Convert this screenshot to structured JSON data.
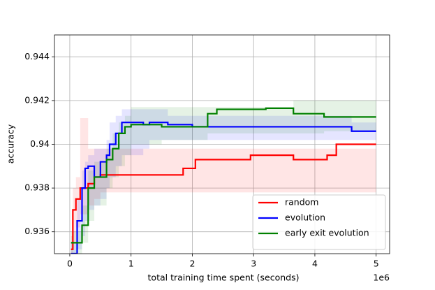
{
  "chart_data": {
    "type": "line",
    "drawstyle": "steps-post",
    "xlabel": "total training time spent (seconds)",
    "ylabel": "accuracy",
    "x_offset_label": "1e6",
    "xlim": [
      -0.25,
      5.22
    ],
    "xticks": [
      0,
      1,
      2,
      3,
      4,
      5
    ],
    "ylim": [
      0.935,
      0.945
    ],
    "yticks": [
      0.936,
      0.938,
      0.94,
      0.942,
      0.944
    ],
    "grid": true,
    "legend": "lower right",
    "series": [
      {
        "name": "random",
        "color": "#ff0000",
        "x": [
          0.02,
          0.05,
          0.1,
          0.17,
          0.3,
          0.4,
          0.5,
          1.85,
          2.05,
          2.95,
          3.65,
          4.2,
          4.35,
          5.0
        ],
        "values": [
          0.9352,
          0.937,
          0.9375,
          0.938,
          0.9382,
          0.9385,
          0.9386,
          0.9389,
          0.9393,
          0.9395,
          0.9393,
          0.9395,
          0.94,
          0.94
        ],
        "band_lower": [
          0.935,
          0.9355,
          0.9362,
          0.9368,
          0.9372,
          0.9375,
          0.9378,
          0.9378,
          0.9378,
          0.9378,
          0.9378,
          0.9378,
          0.9378,
          0.9378
        ],
        "band_upper": [
          0.9358,
          0.938,
          0.9385,
          0.9412,
          0.9398,
          0.9398,
          0.9398,
          0.9398,
          0.9398,
          0.9398,
          0.9398,
          0.9398,
          0.9398,
          0.9398
        ]
      },
      {
        "name": "evolution",
        "color": "#0000ff",
        "x": [
          0.02,
          0.12,
          0.2,
          0.25,
          0.3,
          0.4,
          0.5,
          0.6,
          0.65,
          0.75,
          0.85,
          1.2,
          1.3,
          1.6,
          2.0,
          4.6,
          5.0
        ],
        "values": [
          0.935,
          0.9365,
          0.938,
          0.9389,
          0.939,
          0.9385,
          0.9392,
          0.9395,
          0.94,
          0.9405,
          0.941,
          0.9409,
          0.941,
          0.9409,
          0.9408,
          0.9406,
          0.9406
        ],
        "band_lower": [
          0.935,
          0.9352,
          0.9358,
          0.9365,
          0.937,
          0.9372,
          0.9375,
          0.938,
          0.9385,
          0.939,
          0.9395,
          0.9398,
          0.9402,
          0.9402,
          0.9402,
          0.9402,
          0.9402
        ],
        "band_upper": [
          0.9355,
          0.9375,
          0.9388,
          0.9392,
          0.9395,
          0.9398,
          0.9398,
          0.9402,
          0.941,
          0.9413,
          0.9416,
          0.9416,
          0.9416,
          0.9413,
          0.9413,
          0.941,
          0.941
        ]
      },
      {
        "name": "early exit evolution",
        "color": "#008000",
        "x": [
          0.02,
          0.2,
          0.3,
          0.4,
          0.6,
          0.7,
          0.8,
          0.9,
          1.0,
          1.5,
          2.25,
          2.4,
          3.0,
          3.2,
          3.65,
          4.15,
          5.0
        ],
        "values": [
          0.9355,
          0.9363,
          0.938,
          0.9385,
          0.9393,
          0.9398,
          0.9405,
          0.9408,
          0.9409,
          0.9408,
          0.9414,
          0.9416,
          0.9416,
          0.94165,
          0.9414,
          0.94125,
          0.94125
        ],
        "band_lower": [
          0.935,
          0.9355,
          0.9365,
          0.9372,
          0.938,
          0.9385,
          0.939,
          0.9395,
          0.94,
          0.9402,
          0.9405,
          0.9405,
          0.9405,
          0.9405,
          0.9405,
          0.9406,
          0.9406
        ],
        "band_upper": [
          0.936,
          0.9372,
          0.9388,
          0.9392,
          0.9398,
          0.9405,
          0.941,
          0.9413,
          0.9417,
          0.9417,
          0.9417,
          0.9417,
          0.9417,
          0.9417,
          0.942,
          0.942,
          0.942
        ]
      }
    ]
  }
}
